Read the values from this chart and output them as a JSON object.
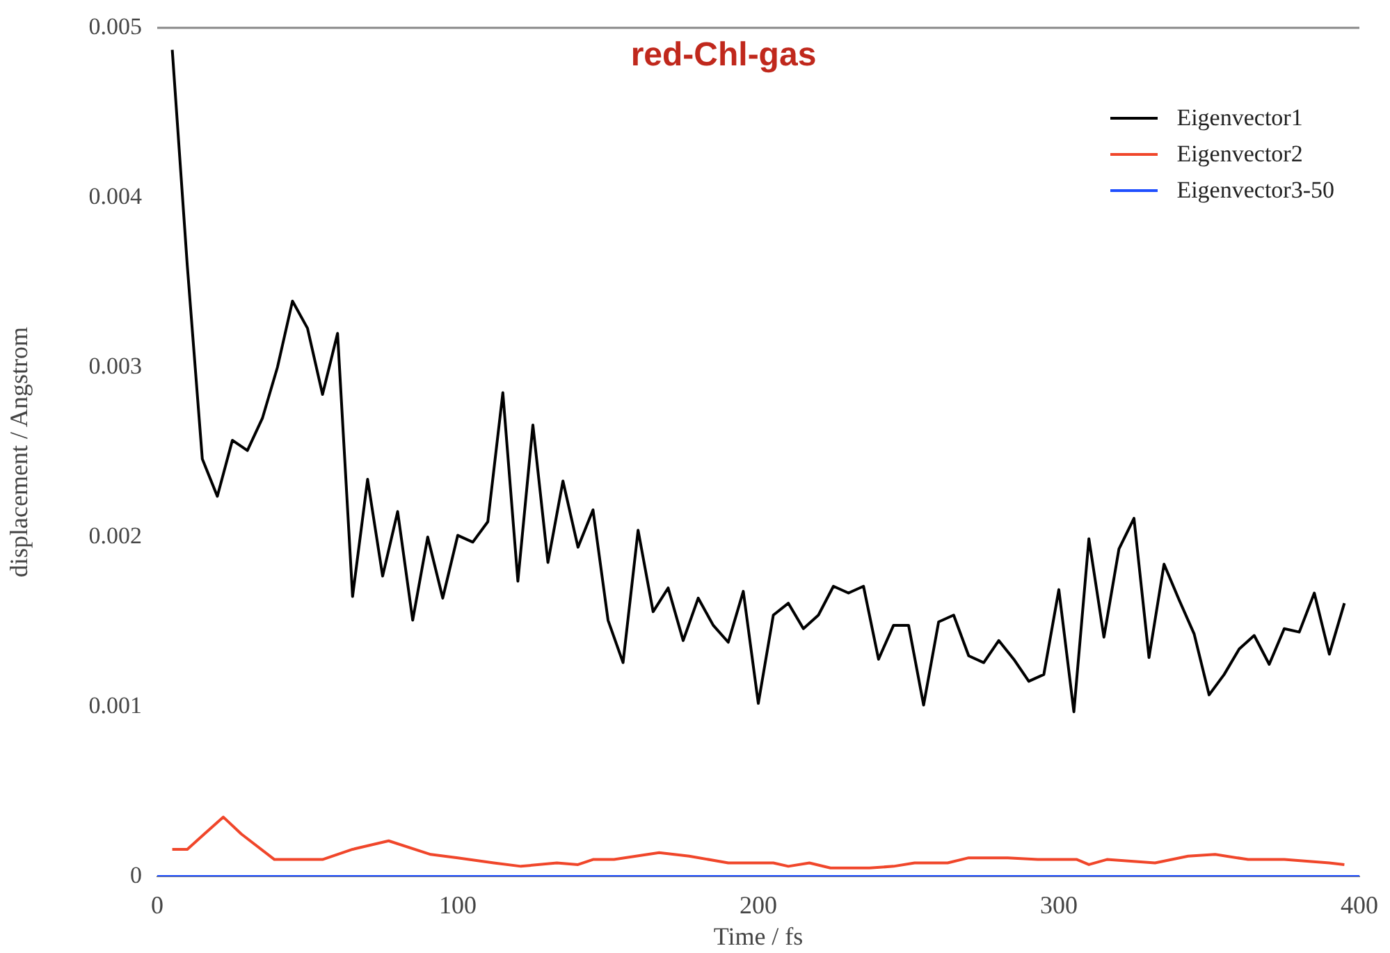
{
  "chart_data": {
    "type": "line",
    "title": "red-Chl-gas",
    "xlabel": "Time / fs",
    "ylabel": "displacement / Angstrom",
    "xlim": [
      0,
      400
    ],
    "xticks": [
      0,
      100,
      200,
      300,
      400
    ],
    "ylim": [
      0,
      0.005
    ],
    "yticks": [
      0,
      0.001,
      0.002,
      0.003,
      0.004,
      0.005
    ],
    "grid": false,
    "legend": "top right",
    "marker": "none",
    "line_style": "solid",
    "series": [
      {
        "name": "Eigenvector1",
        "color": "#000000",
        "x": [
          5,
          10,
          15,
          20,
          25,
          30,
          35,
          40,
          45,
          50,
          55,
          60,
          65,
          70,
          75,
          80,
          85,
          90,
          95,
          100,
          105,
          110,
          115,
          120,
          125,
          130,
          135,
          140,
          145,
          150,
          155,
          160,
          165,
          170,
          175,
          180,
          185,
          190,
          195,
          200,
          205,
          210,
          215,
          220,
          225,
          230,
          235,
          240,
          245,
          250,
          255,
          260,
          265,
          270,
          275,
          280,
          285,
          290,
          295,
          300,
          305,
          310,
          315,
          320,
          325,
          330,
          335,
          340,
          345,
          350,
          355,
          360,
          365,
          370,
          375,
          380,
          385,
          390,
          395
        ],
        "values": [
          0.00487,
          0.0036,
          0.00246,
          0.00224,
          0.00257,
          0.00251,
          0.0027,
          0.003,
          0.00339,
          0.00323,
          0.00284,
          0.0032,
          0.00165,
          0.00234,
          0.00177,
          0.00215,
          0.00151,
          0.002,
          0.00164,
          0.00201,
          0.00197,
          0.00209,
          0.00285,
          0.00174,
          0.00266,
          0.00185,
          0.00233,
          0.00194,
          0.00216,
          0.00151,
          0.00126,
          0.00204,
          0.00156,
          0.0017,
          0.00139,
          0.00164,
          0.00148,
          0.00138,
          0.00168,
          0.00102,
          0.00154,
          0.00161,
          0.00146,
          0.00154,
          0.00171,
          0.00167,
          0.00171,
          0.00128,
          0.00148,
          0.00148,
          0.00101,
          0.0015,
          0.00154,
          0.0013,
          0.00126,
          0.00139,
          0.00128,
          0.00115,
          0.00119,
          0.00169,
          0.00097,
          0.00199,
          0.00141,
          0.00193,
          0.00211,
          0.00129,
          0.00184,
          0.00163,
          0.00143,
          0.00107,
          0.00119,
          0.00134,
          0.00142,
          0.00125,
          0.00146,
          0.00144,
          0.00167,
          0.00131,
          0.00161
        ]
      },
      {
        "name": "Eigenvector2",
        "color": "#f0462a",
        "x": [
          5,
          10,
          15,
          22,
          28,
          39,
          55,
          65,
          77,
          91,
          100,
          112,
          121,
          133,
          140,
          145,
          152,
          167,
          177,
          190,
          205,
          210,
          217,
          224,
          237,
          245,
          252,
          263,
          270,
          283,
          293,
          306,
          310,
          316,
          332,
          343,
          352,
          363,
          375,
          390,
          395
        ],
        "values": [
          0.00016,
          0.00016,
          0.00024,
          0.00035,
          0.00025,
          0.0001,
          0.0001,
          0.00016,
          0.00021,
          0.00013,
          0.00011,
          8e-05,
          6e-05,
          8e-05,
          7e-05,
          0.0001,
          0.0001,
          0.00014,
          0.00012,
          8e-05,
          8e-05,
          6e-05,
          8e-05,
          5e-05,
          5e-05,
          6e-05,
          8e-05,
          8e-05,
          0.00011,
          0.00011,
          0.0001,
          0.0001,
          7e-05,
          0.0001,
          8e-05,
          0.00012,
          0.00013,
          0.0001,
          0.0001,
          8e-05,
          7e-05
        ]
      },
      {
        "name": "Eigenvector3-50",
        "color": "#1f4fff",
        "x": [
          0,
          400
        ],
        "values": [
          0,
          0
        ]
      }
    ]
  }
}
